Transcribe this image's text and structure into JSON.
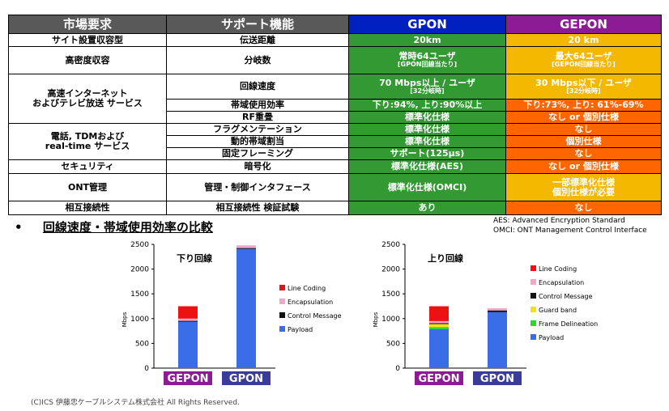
{
  "table": {
    "headers": [
      "市場要求",
      "サポート機能",
      "GPON",
      "GEPON"
    ],
    "rows": {
      "r1": {
        "req": "サイト設置収容型",
        "func": "伝送距離",
        "gpon": "20km",
        "gepon": "20 km"
      },
      "r2": {
        "req": "高密度収容",
        "func": "分岐数",
        "gpon": "常時64ユーザ",
        "gpon_sub": "[GPON回線当たり]",
        "gepon": "最大64ユーザ",
        "gepon_sub": "[GEPON回線当たり]"
      },
      "r3": {
        "req_line1": "高速インターネット",
        "req_line2": "およびテレビ放送 サービス",
        "func": "回線速度",
        "gpon": "70 Mbps以上 / ユーザ",
        "gpon_sub": "[32分岐時]",
        "gepon": "30 Mbps以下 / ユーザ",
        "gepon_sub": "[32分岐時]"
      },
      "r4": {
        "func": "帯域使用効率",
        "gpon": "下り:94%, 上り:90%以上",
        "gepon": "下り:73%, 上り: 61%-69%"
      },
      "r5": {
        "func": "RF重畳",
        "gpon": "標準化仕様",
        "gepon": "なし or 個別仕様"
      },
      "r6": {
        "req_line1": "電話, TDMおよび",
        "req_line2": "real-time サービス",
        "func": "フラグメンテーション",
        "gpon": "標準化仕様",
        "gepon": "なし"
      },
      "r7": {
        "func": "動的帯域割当",
        "gpon": "標準化仕様",
        "gepon": "個別仕様"
      },
      "r8": {
        "func": "固定フレーミング",
        "gpon": "サポート(125μs)",
        "gepon": "なし"
      },
      "r9": {
        "req": "セキュリティ",
        "func": "暗号化",
        "gpon": "標準化仕様(AES)",
        "gepon": "なし or 個別仕様"
      },
      "r10": {
        "req": "ONT管理",
        "func": "管理・制御インタフェース",
        "gpon": "標準化仕様(OMCI)",
        "gepon_line1": "一部標準化仕様",
        "gepon_line2": "個別仕様が必要"
      },
      "r11": {
        "req": "相互接続性",
        "func": "相互接続性 検証試験",
        "gpon": "あり",
        "gepon": "なし"
      }
    }
  },
  "section": {
    "bullet": "•",
    "title": "回線速度・帯域使用効率の比較"
  },
  "abbreviations": {
    "aes": "AES: Advanced Encryption Standard",
    "omci": "OMCI: ONT Management Control Interface"
  },
  "colors": {
    "gpon": "#0020c0",
    "gepon": "#8e1b96",
    "green": "#339933",
    "yellow": "#f5b800",
    "orange": "#ff6600",
    "header_gray": "#595959",
    "gepon_label_bg": "#8e1b96",
    "gpon_label_bg": "#3b3b9a"
  },
  "chart_data": [
    {
      "type": "bar",
      "stacked": true,
      "title": "下り回線",
      "ylabel": "Mbps",
      "ylim": [
        0,
        2500
      ],
      "yticks": [
        0,
        500,
        1000,
        1500,
        2000,
        2500
      ],
      "categories": [
        "GEPON",
        "GPON"
      ],
      "series": [
        {
          "name": "Payload",
          "color": "#3a6ee8",
          "values": [
            940,
            2410
          ]
        },
        {
          "name": "Control Message",
          "color": "#111111",
          "values": [
            15,
            15
          ]
        },
        {
          "name": "Encapsulation",
          "color": "#f4a6c8",
          "values": [
            45,
            55
          ]
        },
        {
          "name": "Line Coding",
          "color": "#ee1111",
          "values": [
            250,
            0
          ]
        }
      ],
      "legend": {
        "position": "right",
        "order": [
          "Line Coding",
          "Encapsulation",
          "Control Message",
          "Payload"
        ]
      }
    },
    {
      "type": "bar",
      "stacked": true,
      "title": "上り回線",
      "ylabel": "Mbps",
      "ylim": [
        0,
        2500
      ],
      "yticks": [
        0,
        500,
        1000,
        1500,
        2000,
        2500
      ],
      "categories": [
        "GEPON",
        "GPON"
      ],
      "series": [
        {
          "name": "Payload",
          "color": "#3a6ee8",
          "values": [
            790,
            1130
          ]
        },
        {
          "name": "Frame Delineation",
          "color": "#22dd22",
          "values": [
            40,
            0
          ]
        },
        {
          "name": "Guard band",
          "color": "#f2e21a",
          "values": [
            60,
            0
          ]
        },
        {
          "name": "Control Message",
          "color": "#111111",
          "values": [
            20,
            35
          ]
        },
        {
          "name": "Encapsulation",
          "color": "#f4a6c8",
          "values": [
            40,
            45
          ]
        },
        {
          "name": "Line Coding",
          "color": "#ee1111",
          "values": [
            300,
            0
          ]
        }
      ],
      "legend": {
        "position": "right",
        "order": [
          "Line Coding",
          "Encapsulation",
          "Control Message",
          "Guard band",
          "Frame Delineation",
          "Payload"
        ]
      }
    }
  ],
  "footer": "(C)ICS 伊藤忠ケーブルシステム株式会社 All Rights Reserved."
}
